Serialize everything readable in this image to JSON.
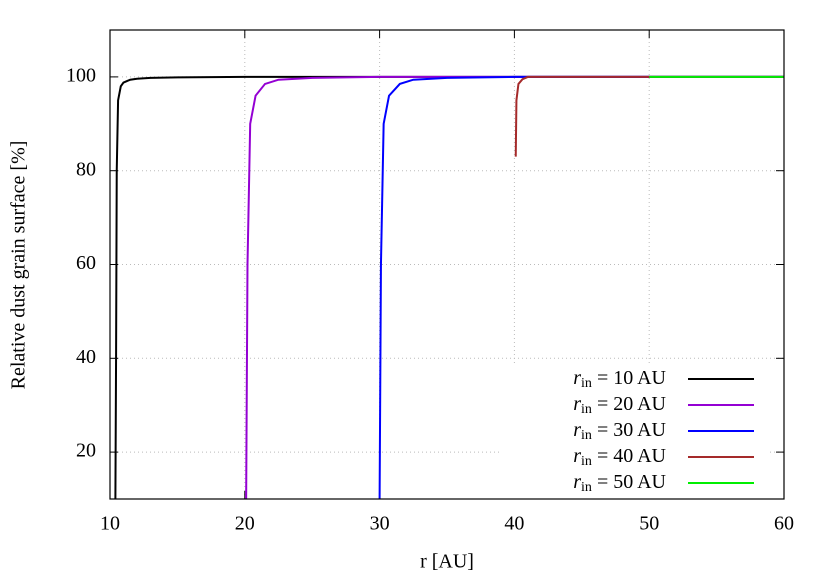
{
  "chart_data": {
    "type": "line",
    "x_label": "r [AU]",
    "y_label": "Relative dust grain surface [%]",
    "xlim": [
      10,
      60
    ],
    "xticks": [
      10,
      20,
      30,
      40,
      50,
      60
    ],
    "ylim": [
      10,
      110
    ],
    "yticks": [
      20,
      40,
      60,
      80,
      100
    ],
    "grid": true,
    "legend": "lower right",
    "series": [
      {
        "name": "r_in = 10 AU",
        "color": "#000000",
        "x": [
          10.4,
          10.45,
          10.5,
          10.6,
          10.8,
          11,
          11.5,
          12,
          13,
          15,
          20,
          30,
          40,
          50,
          60
        ],
        "values": [
          10,
          40,
          80,
          95,
          98,
          98.8,
          99.4,
          99.6,
          99.8,
          99.9,
          100,
          100,
          100,
          100,
          100
        ]
      },
      {
        "name": "r_in = 20 AU",
        "color": "#9400d3",
        "x": [
          20.1,
          20.2,
          20.4,
          20.8,
          21.5,
          22.5,
          25,
          30,
          40,
          50,
          60
        ],
        "values": [
          10,
          60,
          90,
          96,
          98.5,
          99.4,
          99.8,
          100,
          100,
          100,
          100
        ]
      },
      {
        "name": "r_in = 30 AU",
        "color": "#0000ff",
        "x": [
          30,
          30.1,
          30.3,
          30.7,
          31.5,
          32.5,
          35,
          40,
          50,
          60
        ],
        "values": [
          10,
          60,
          90,
          96,
          98.5,
          99.4,
          99.8,
          100,
          100,
          100
        ]
      },
      {
        "name": "r_in = 40 AU",
        "color": "#a52a2a",
        "x": [
          40.1,
          40.15,
          40.3,
          40.6,
          41,
          50,
          60
        ],
        "values": [
          83,
          95,
          98.5,
          99.5,
          100,
          100,
          100
        ]
      },
      {
        "name": "r_in = 50 AU",
        "color": "#00ee00",
        "x": [
          50,
          60
        ],
        "values": [
          100,
          100
        ]
      }
    ]
  }
}
